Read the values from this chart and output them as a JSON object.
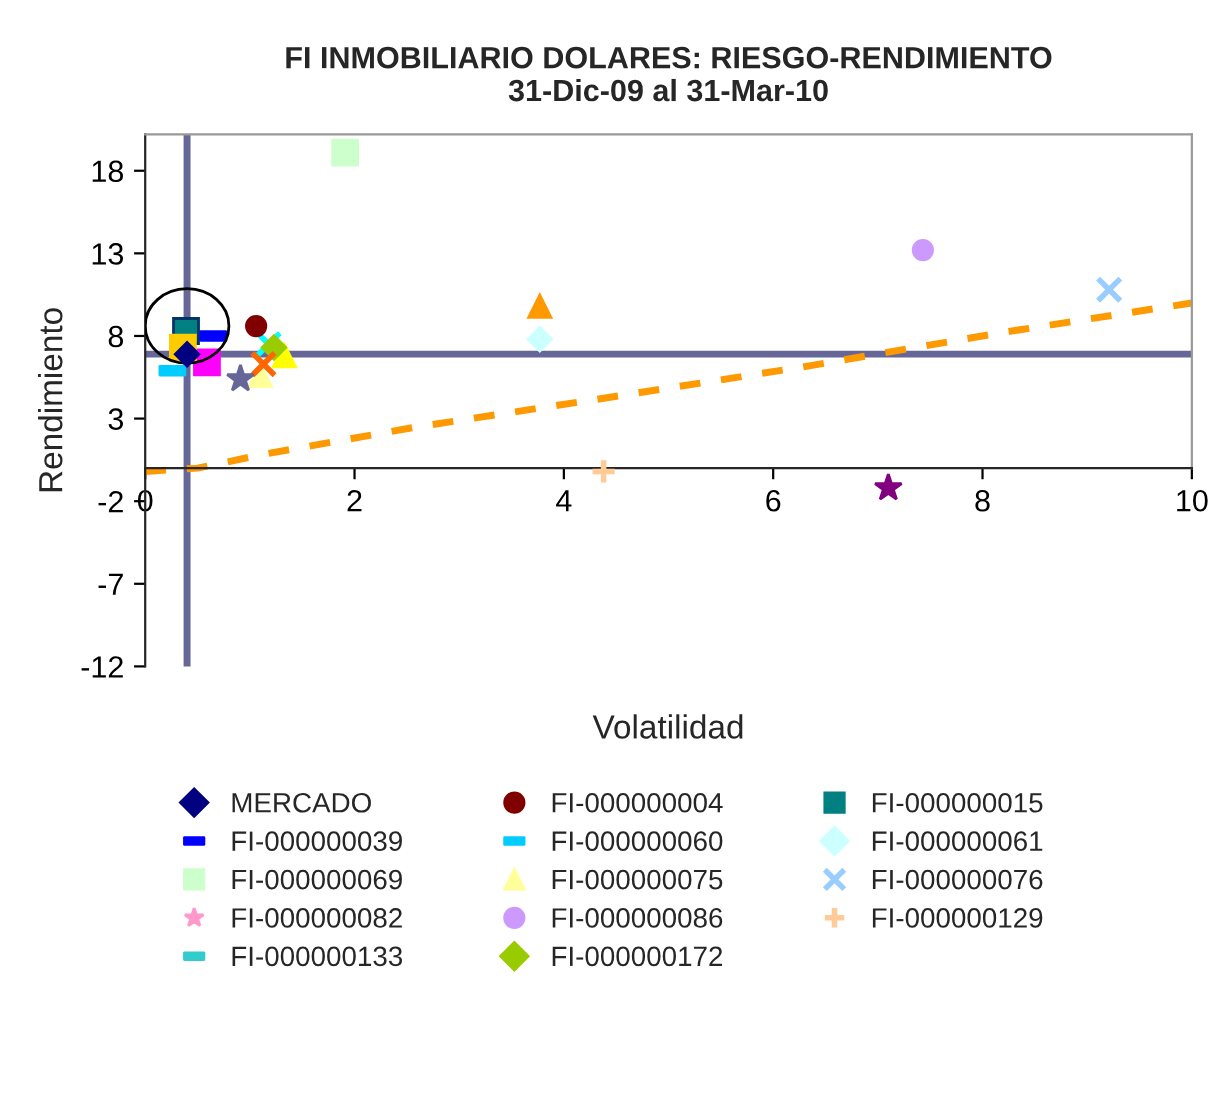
{
  "chart_data": {
    "type": "scatter",
    "title": "FI INMOBILIARIO DOLARES: RIESGO-RENDIMIENTO\n31-Dic-09 al 31-Mar-10",
    "xlabel": "Volatilidad",
    "ylabel": "Rendimiento",
    "xlim": [
      0,
      10
    ],
    "xticks": [
      0,
      2,
      4,
      6,
      8,
      10
    ],
    "ylim": [
      -12,
      20.2
    ],
    "yticks": [
      -12,
      -7,
      -2,
      3,
      8,
      13,
      18
    ],
    "grid": false,
    "legend": "bottom",
    "ref_lines": [
      {
        "axis": "x",
        "value": 0.4,
        "color": "#666699"
      },
      {
        "axis": "y",
        "value": 6.9,
        "color": "#666699"
      }
    ],
    "series": [
      {
        "name": "MERCADO",
        "color": "#000080",
        "marker": "diamond",
        "x": [
          0.4
        ],
        "values": [
          6.9
        ]
      },
      {
        "color": "#ff00ff",
        "marker": "square",
        "x": [
          0.59
        ],
        "values": [
          6.4
        ]
      },
      {
        "color": "#ffff00",
        "marker": "triangle",
        "x": [
          1.33
        ],
        "values": [
          6.8
        ]
      },
      {
        "color": "#00ffff",
        "marker": "cross",
        "x": [
          1.18
        ],
        "values": [
          7.5
        ]
      },
      {
        "color": "#800080",
        "marker": "star",
        "x": [
          7.1
        ],
        "values": [
          -1.2
        ]
      },
      {
        "name": "FI-000000004",
        "color": "#800000",
        "marker": "circle",
        "x": [
          1.06
        ],
        "values": [
          8.6
        ]
      },
      {
        "name": "FI-000000015",
        "color": "#008080",
        "marker": "square",
        "x": [
          0.39
        ],
        "values": [
          8.3
        ]
      },
      {
        "name": "FI-000000039",
        "color": "#0000ff",
        "marker": "square",
        "x": [
          0.65
        ],
        "values": [
          8.0
        ]
      },
      {
        "name": "FI-000000060",
        "color": "#00ccff",
        "marker": "square",
        "x": [
          0.26
        ],
        "values": [
          5.9
        ]
      },
      {
        "name": "FI-000000061",
        "color": "#ccffff",
        "marker": "diamond",
        "x": [
          3.77
        ],
        "values": [
          7.8
        ]
      },
      {
        "name": "FI-000000069",
        "color": "#ccffcc",
        "marker": "square",
        "x": [
          1.91
        ],
        "values": [
          19.1
        ]
      },
      {
        "name": "FI-000000075",
        "color": "#ffff99",
        "marker": "triangle",
        "x": [
          1.1
        ],
        "values": [
          5.6
        ]
      },
      {
        "name": "FI-000000076",
        "color": "#99ccff",
        "marker": "cross",
        "x": [
          9.21
        ],
        "values": [
          10.8
        ]
      },
      {
        "name": "FI-000000082",
        "color": "#ff99cc",
        "marker": "star",
        "x": [
          null
        ],
        "values": [
          null
        ]
      },
      {
        "name": "FI-000000086",
        "color": "#cc99ff",
        "marker": "circle",
        "x": [
          7.43
        ],
        "values": [
          13.2
        ]
      },
      {
        "name": "FI-000000129",
        "color": "#ffcc99",
        "marker": "plus",
        "x": [
          4.38
        ],
        "values": [
          -0.2
        ]
      },
      {
        "name": "FI-000000133",
        "color": "#33cccc",
        "marker": "square",
        "x": [
          null
        ],
        "values": [
          null
        ]
      },
      {
        "name": "FI-000000172",
        "color": "#99cc00",
        "marker": "diamond",
        "x": [
          1.23
        ],
        "values": [
          7.3
        ]
      },
      {
        "color": "#ffcc00",
        "marker": "square",
        "x": [
          0.36
        ],
        "values": [
          7.3
        ]
      },
      {
        "color": "#ff9900",
        "marker": "triangle",
        "x": [
          3.77
        ],
        "values": [
          9.8
        ]
      },
      {
        "color": "#ff6600",
        "marker": "cross",
        "x": [
          1.13
        ],
        "values": [
          6.3
        ]
      },
      {
        "color": "#666699",
        "marker": "star",
        "x": [
          0.91
        ],
        "values": [
          5.4
        ]
      },
      {
        "type": "line",
        "color": "#ff9900",
        "marker": "none",
        "line_style": "dashed",
        "x": [
          0,
          0.5,
          1.1,
          2.6,
          4.35,
          6.26,
          8.18,
          10
        ],
        "values": [
          -0.2,
          0.0,
          0.8,
          2.5,
          4.2,
          6.1,
          8.2,
          10.0
        ]
      }
    ]
  }
}
